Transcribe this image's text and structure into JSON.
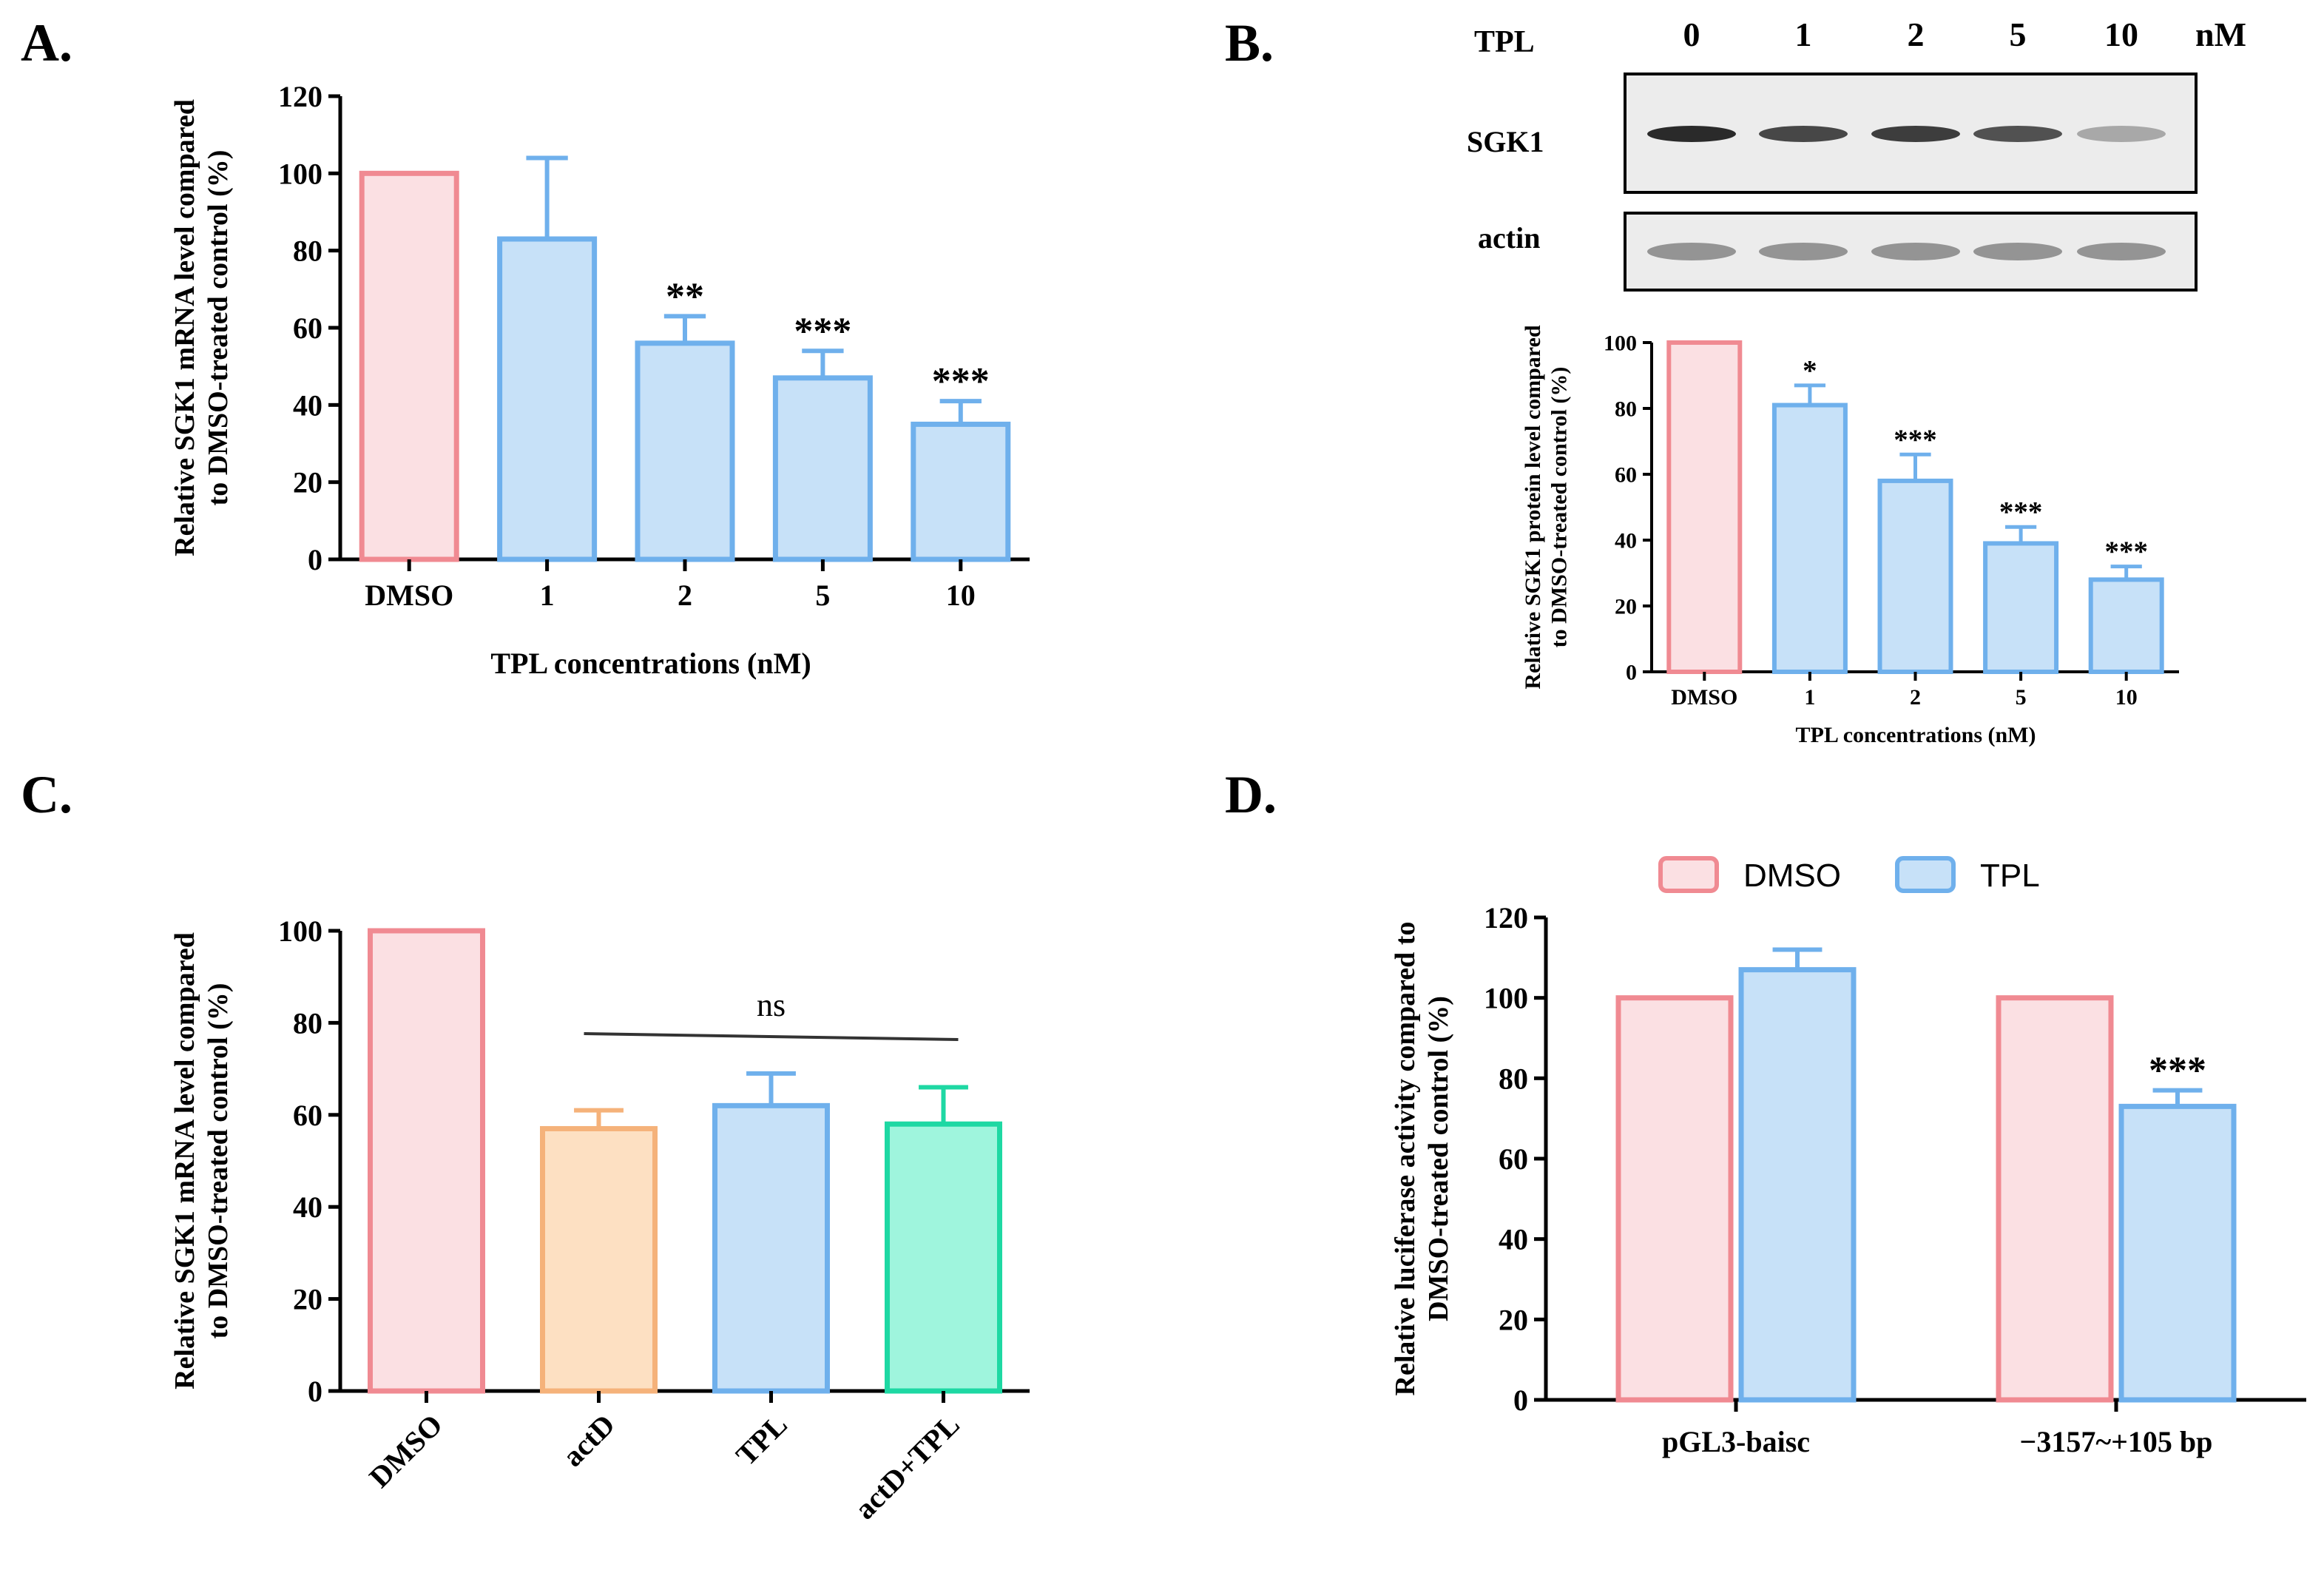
{
  "colors": {
    "dmso_fill": "#fbe0e3",
    "dmso_edge": "#f08a92",
    "tpl_fill": "#c7e1f8",
    "tpl_edge": "#6fb0ec",
    "actd_fill": "#fde0c2",
    "actd_edge": "#f5b27a",
    "combo_fill": "#9ff5dd",
    "combo_edge": "#1ed8a3",
    "axis": "#000000",
    "blot_bg": "#ececec",
    "band": "#2a2a2a"
  },
  "panel_labels": {
    "a": "A.",
    "b": "B.",
    "c": "C.",
    "d": "D."
  },
  "blot": {
    "row_header": "TPL",
    "doses": [
      "0",
      "1",
      "2",
      "5",
      "10"
    ],
    "unit": "nM",
    "rows": [
      {
        "label": "SGK1",
        "intensity": [
          1.0,
          0.85,
          0.9,
          0.8,
          0.35
        ]
      },
      {
        "label": "actin",
        "intensity": [
          0.45,
          0.45,
          0.45,
          0.45,
          0.45
        ]
      }
    ]
  },
  "chart_data": [
    {
      "id": "A",
      "type": "bar",
      "title": "",
      "ylabel": [
        "Relative SGK1 mRNA level compared",
        "to DMSO-treated control (%)"
      ],
      "xlabel": "TPL concentrations (nM)",
      "categories": [
        "DMSO",
        "1",
        "2",
        "5",
        "10"
      ],
      "values": [
        100,
        83,
        56,
        47,
        35
      ],
      "errors": [
        0,
        21,
        7,
        7,
        6
      ],
      "significance": [
        "",
        "",
        "**",
        "***",
        "***"
      ],
      "series_colors": [
        "dmso",
        "tpl",
        "tpl",
        "tpl",
        "tpl"
      ],
      "ylim": [
        0,
        120
      ],
      "yticks": [
        0,
        20,
        40,
        60,
        80,
        100,
        120
      ]
    },
    {
      "id": "B",
      "type": "bar",
      "title": "",
      "ylabel": [
        "Relative SGK1 protein level compared",
        "to DMSO-treated control (%)"
      ],
      "xlabel": "TPL concentrations (nM)",
      "categories": [
        "DMSO",
        "1",
        "2",
        "5",
        "10"
      ],
      "values": [
        100,
        81,
        58,
        39,
        28
      ],
      "errors": [
        0,
        6,
        8,
        5,
        4
      ],
      "significance": [
        "",
        "*",
        "***",
        "***",
        "***"
      ],
      "series_colors": [
        "dmso",
        "tpl",
        "tpl",
        "tpl",
        "tpl"
      ],
      "ylim": [
        0,
        100
      ],
      "yticks": [
        0,
        20,
        40,
        60,
        80,
        100
      ]
    },
    {
      "id": "C",
      "type": "bar",
      "title": "",
      "ylabel": [
        "Relative SGK1 mRNA level compared",
        "to DMSO-treated control (%)"
      ],
      "xlabel": "",
      "categories": [
        "DMSO",
        "actD",
        "TPL",
        "actD+TPL"
      ],
      "values": [
        100,
        57,
        62,
        58
      ],
      "errors": [
        0,
        4,
        7,
        8
      ],
      "significance": [
        "",
        "",
        "",
        ""
      ],
      "bracket": {
        "from": 1,
        "to": 3,
        "label": "ns"
      },
      "series_colors": [
        "dmso",
        "actd",
        "tpl",
        "combo"
      ],
      "ylim": [
        0,
        100
      ],
      "yticks": [
        0,
        20,
        40,
        60,
        80,
        100
      ]
    },
    {
      "id": "D",
      "type": "bar",
      "title": "",
      "ylabel": [
        "Relative luciferase activity compared to",
        "DMSO-treated control (%)"
      ],
      "xlabel": "",
      "categories": [
        "pGL3-baisc",
        "−3157~+105 bp"
      ],
      "legend": {
        "position": "top",
        "entries": [
          "DMSO",
          "TPL"
        ]
      },
      "series": [
        {
          "name": "DMSO",
          "values": [
            100,
            100
          ],
          "errors": [
            0,
            0
          ],
          "significance": [
            "",
            ""
          ]
        },
        {
          "name": "TPL",
          "values": [
            107,
            73
          ],
          "errors": [
            5,
            4
          ],
          "significance": [
            "",
            "***"
          ]
        }
      ],
      "ylim": [
        0,
        120
      ],
      "yticks": [
        0,
        20,
        40,
        60,
        80,
        100,
        120
      ]
    }
  ]
}
